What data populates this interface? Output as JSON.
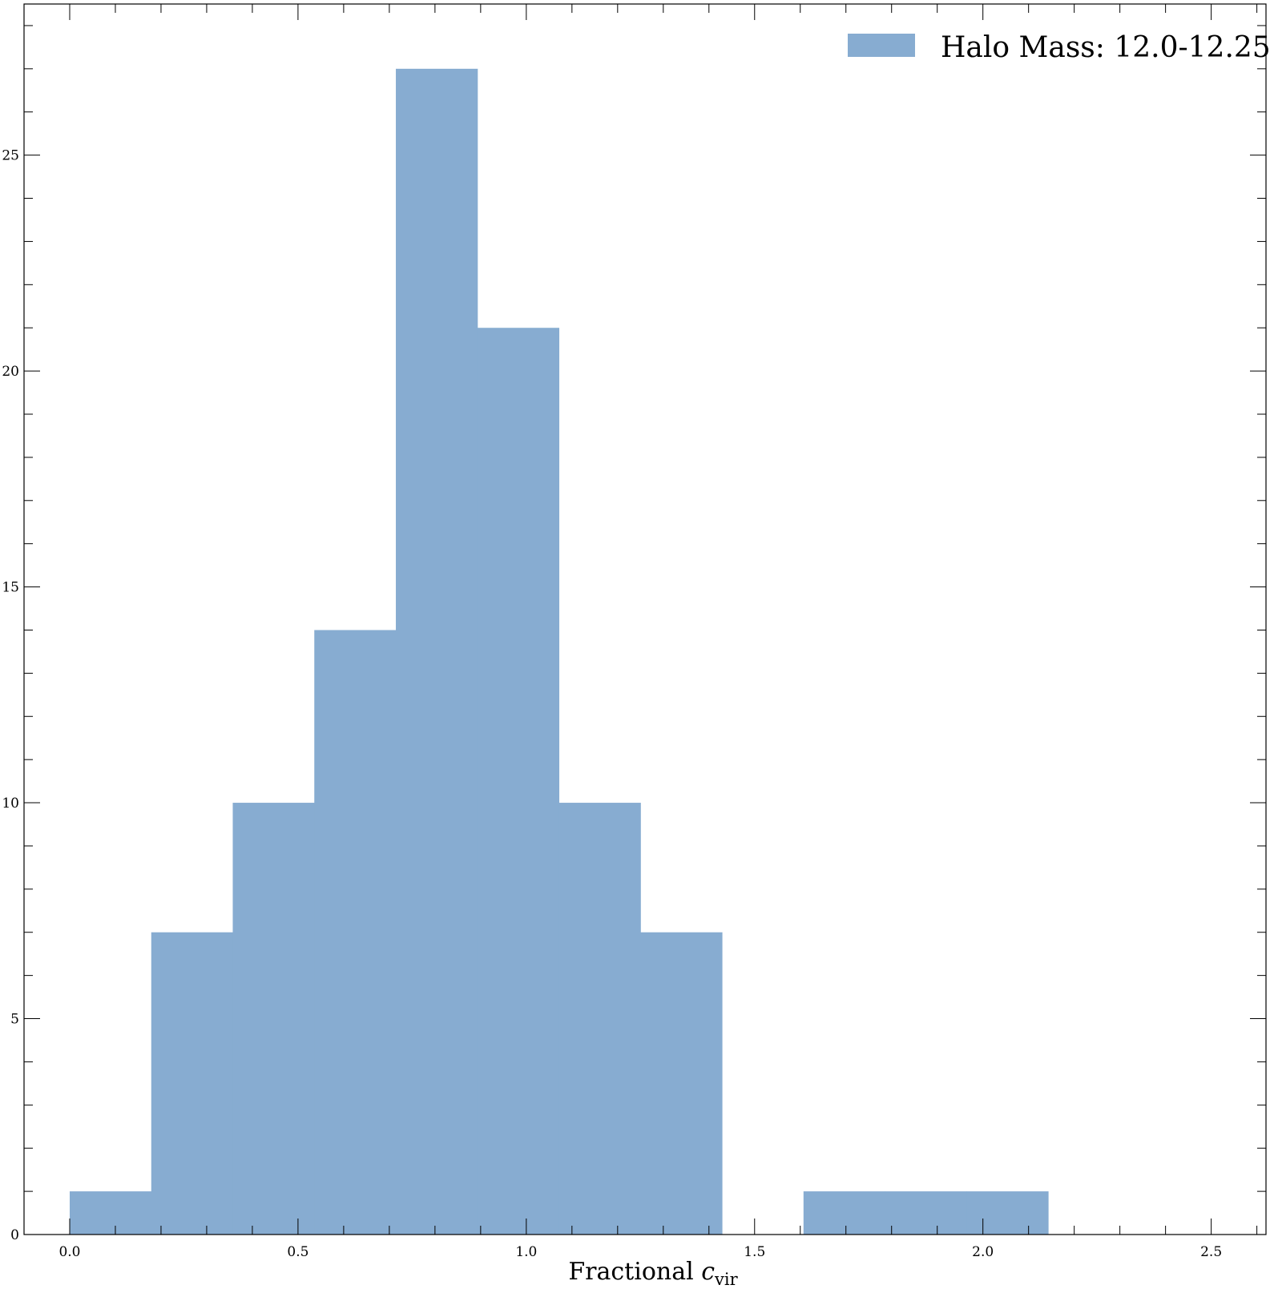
{
  "chart_data": {
    "type": "bar",
    "histogram": true,
    "bin_edges": [
      0.0,
      0.1786,
      0.3571,
      0.5357,
      0.7143,
      0.8929,
      1.0714,
      1.25,
      1.4286,
      1.6071,
      1.7857,
      1.9643,
      2.1429
    ],
    "counts": [
      1,
      7,
      10,
      14,
      27,
      21,
      10,
      7,
      0,
      1,
      1,
      1
    ],
    "series": [
      {
        "name": "Halo Mass: 12.0-12.25",
        "color": "#87acd1"
      }
    ],
    "xlabel_main": "Fractional ",
    "xlabel_math": "c",
    "xlabel_sub": "vir",
    "ylabel": "",
    "xlim": [
      -0.1,
      2.62
    ],
    "ylim": [
      0,
      28.5
    ],
    "xticks": [
      0.0,
      0.5,
      1.0,
      1.5,
      2.0,
      2.5
    ],
    "xtick_labels": [
      "0.0",
      "0.5",
      "1.0",
      "1.5",
      "2.0",
      "2.5"
    ],
    "yticks": [
      0,
      5,
      10,
      15,
      20,
      25
    ],
    "ytick_labels": [
      "0",
      "5",
      "10",
      "15",
      "20",
      "25"
    ],
    "x_minor_step": 0.1,
    "y_minor_step": 1,
    "grid": false,
    "legend_position": "top-right"
  }
}
